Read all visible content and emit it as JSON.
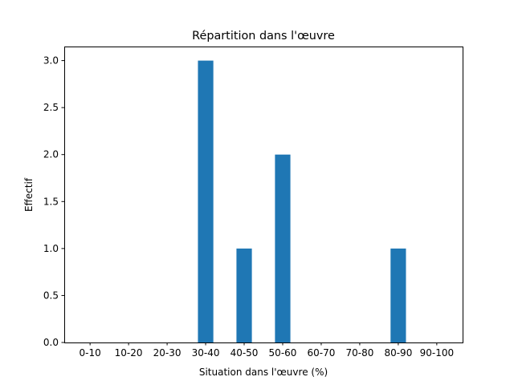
{
  "chart_data": {
    "type": "bar",
    "title": "Répartition dans l'œuvre",
    "xlabel": "Situation dans l'œuvre (%)",
    "ylabel": "Effectif",
    "categories": [
      "0-10",
      "10-20",
      "20-30",
      "30-40",
      "40-50",
      "50-60",
      "60-70",
      "70-80",
      "80-90",
      "90-100"
    ],
    "values": [
      0,
      0,
      0,
      3,
      1,
      2,
      0,
      0,
      1,
      0
    ],
    "ylim": [
      0,
      3.15
    ],
    "yticks": [
      "0.0",
      "0.5",
      "1.0",
      "1.5",
      "2.0",
      "2.5",
      "3.0"
    ],
    "bar_color": "#1f77b4",
    "grid": false,
    "legend": "none"
  }
}
